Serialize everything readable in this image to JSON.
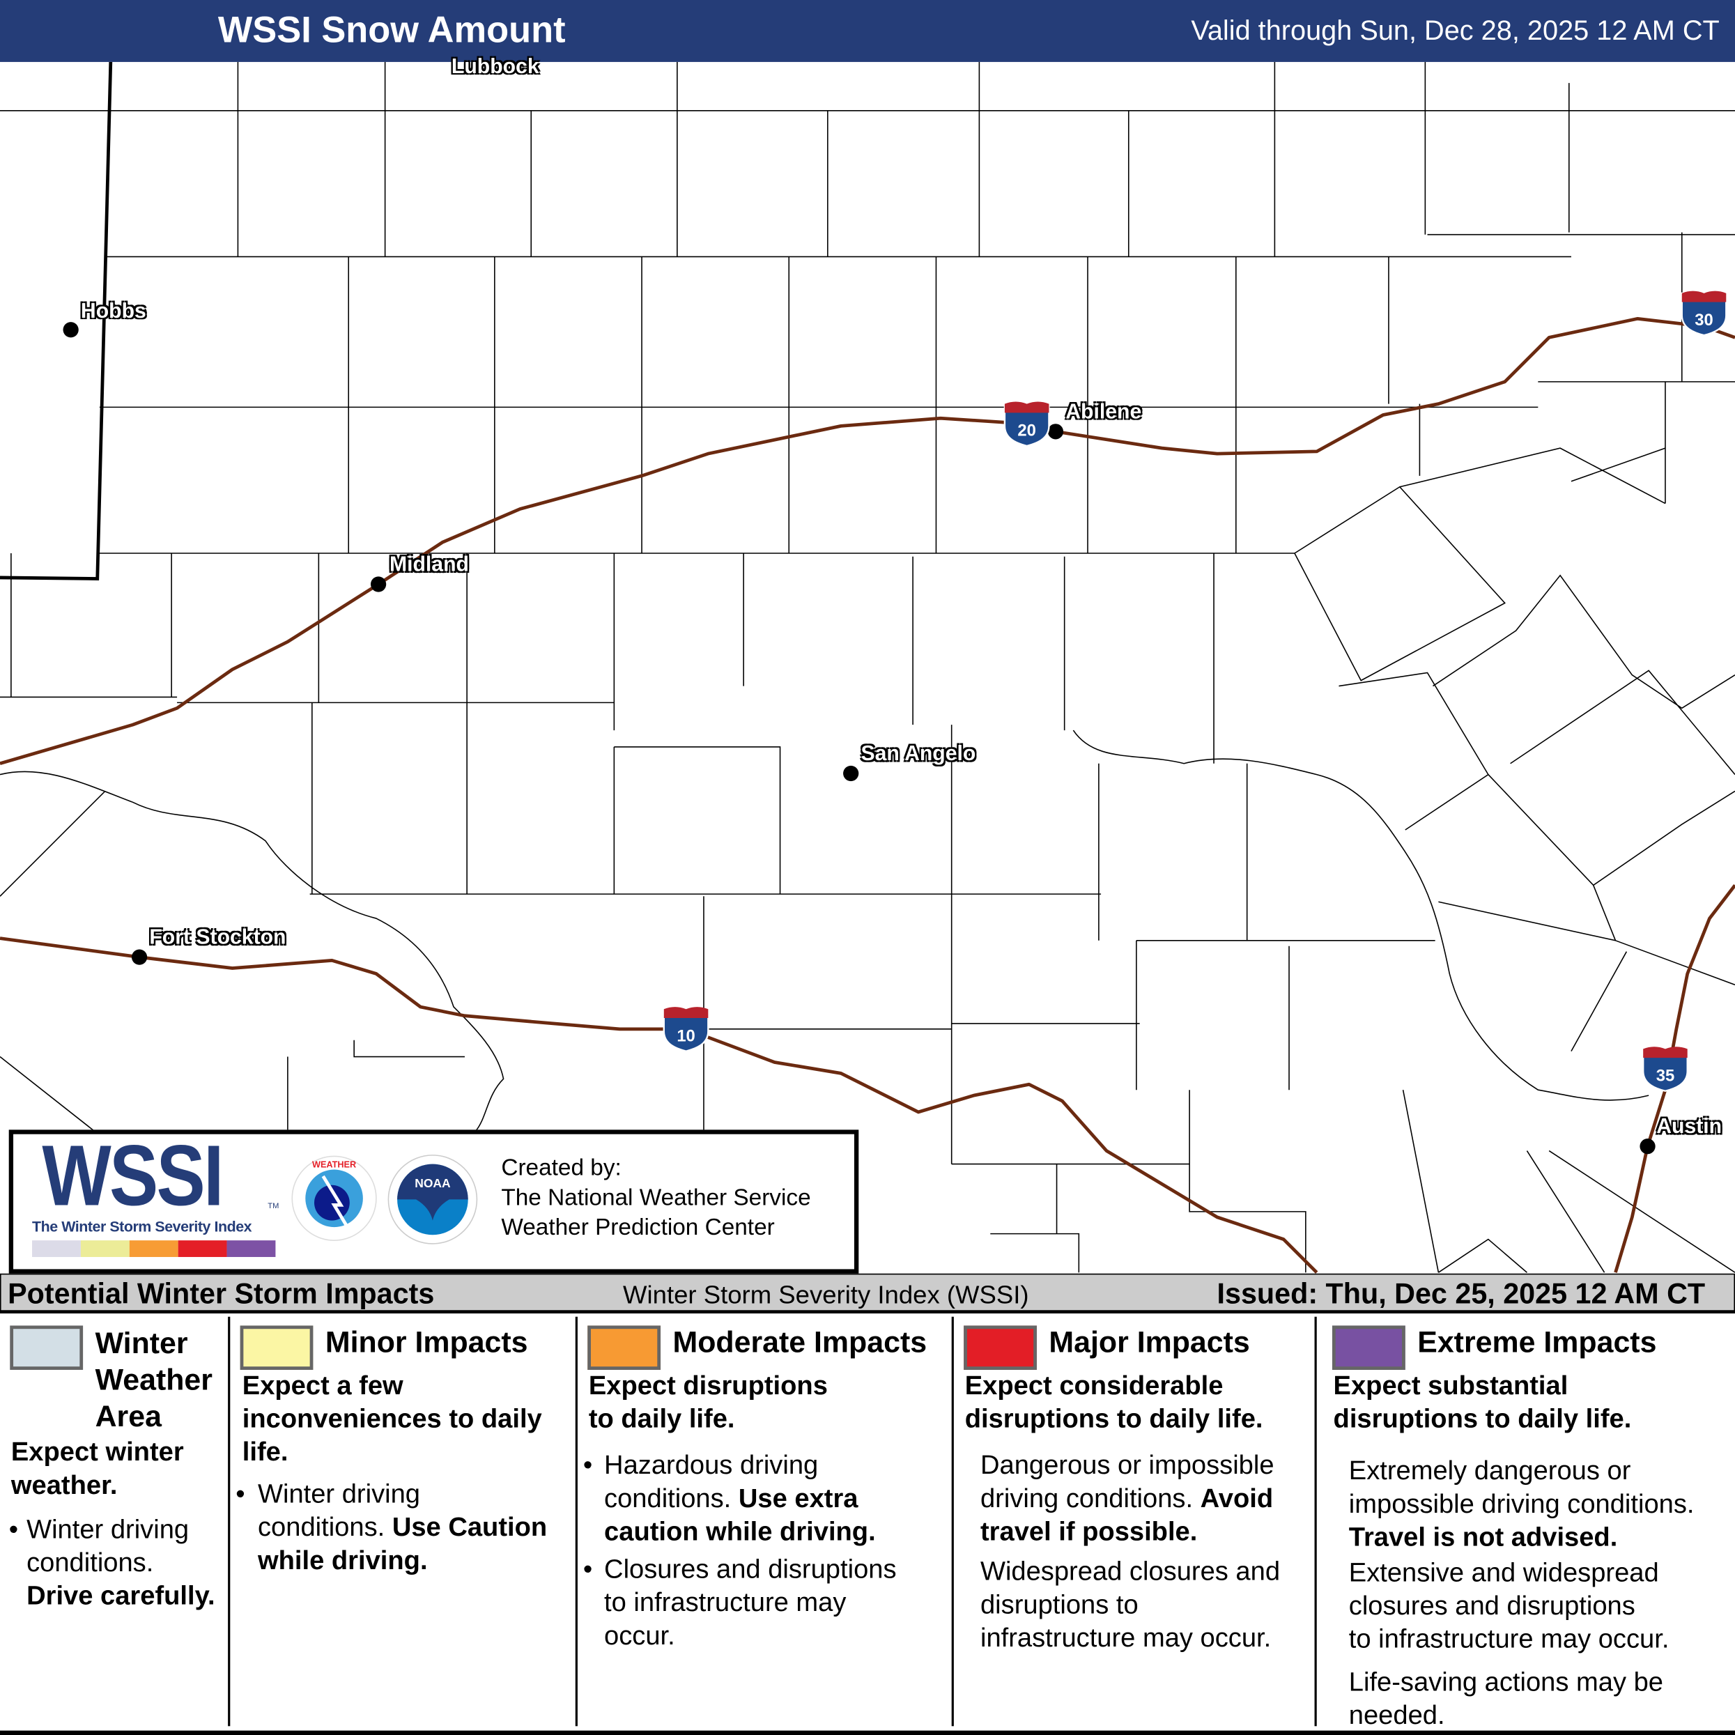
{
  "header": {
    "title": "WSSI Snow Amount",
    "valid": "Valid through Sun, Dec 28, 2025 12 AM CT",
    "bg_color": "#253d78"
  },
  "map": {
    "cities": [
      {
        "name": "Lubbock"
      },
      {
        "name": "Hobbs"
      },
      {
        "name": "Midland"
      },
      {
        "name": "Abilene"
      },
      {
        "name": "San Angelo"
      },
      {
        "name": "Fort Stockton"
      },
      {
        "name": "Austin"
      }
    ],
    "interstates": [
      {
        "number": "20"
      },
      {
        "number": "30"
      },
      {
        "number": "10"
      },
      {
        "number": "35"
      }
    ],
    "highway_color": "#6b2a10"
  },
  "logo": {
    "wssi": "WSSI",
    "tm": "TM",
    "tagline": "The Winter Storm Severity Index",
    "scale_colors": [
      "#dcdbe8",
      "#ecec98",
      "#f79c35",
      "#e41f27",
      "#7d52a5"
    ],
    "created_by": "Created by:",
    "org1": "The National Weather Service",
    "org2": "Weather Prediction Center",
    "nws_text": "NATIONAL WEATHER SERVICE",
    "noaa_text": "NOAA"
  },
  "legend": {
    "title": "Potential Winter Storm Impacts",
    "subtitle": "Winter Storm Severity Index (WSSI)",
    "issued": "Issued: Thu, Dec 25, 2025 12 AM CT",
    "columns": [
      {
        "label_lines": [
          "Winter",
          "Weather",
          "Area"
        ],
        "color": "#d3dfe6",
        "summary_lines": [
          "Expect winter",
          "weather."
        ],
        "bullet": "•",
        "body_lines": [
          "Winter driving",
          "conditions."
        ],
        "bold": "Drive carefully."
      },
      {
        "label": "Minor Impacts",
        "color": "#fbf6a4",
        "summary_lines": [
          "Expect a few",
          "inconveniences to daily",
          "life."
        ],
        "bullet": "•",
        "body_lines": [
          "Winter driving",
          "conditions."
        ],
        "bold_lines": [
          "Use Caution",
          "while driving."
        ]
      },
      {
        "label": "Moderate Impacts",
        "color": "#f79a33",
        "summary_lines": [
          "Expect disruptions",
          "to daily life."
        ],
        "bullet": "•",
        "body1_lines": [
          "Hazardous driving",
          "conditions."
        ],
        "bold1_lines": [
          "Use extra",
          "caution while driving."
        ],
        "body2_lines": [
          "Closures and disruptions",
          "to infrastructure may",
          "occur."
        ]
      },
      {
        "label": "Major Impacts",
        "color": "#e31e26",
        "summary_lines": [
          "Expect considerable",
          "disruptions to daily life."
        ],
        "body1_lines": [
          "Dangerous or impossible",
          "driving conditions."
        ],
        "bold1_lines": [
          "Avoid",
          "travel if possible."
        ],
        "body2_lines": [
          "Widespread closures and",
          "disruptions to",
          "infrastructure may occur."
        ]
      },
      {
        "label": "Extreme Impacts",
        "color": "#7851a2",
        "summary_lines": [
          "Expect substantial",
          "disruptions to daily life."
        ],
        "body1_lines": [
          "Extremely dangerous or",
          "impossible driving conditions."
        ],
        "bold1": "Travel is not advised.",
        "body2_lines": [
          "Extensive and widespread",
          "closures and disruptions",
          "to infrastructure may occur."
        ],
        "body3_lines": [
          "Life-saving actions may be",
          "needed."
        ]
      }
    ]
  }
}
